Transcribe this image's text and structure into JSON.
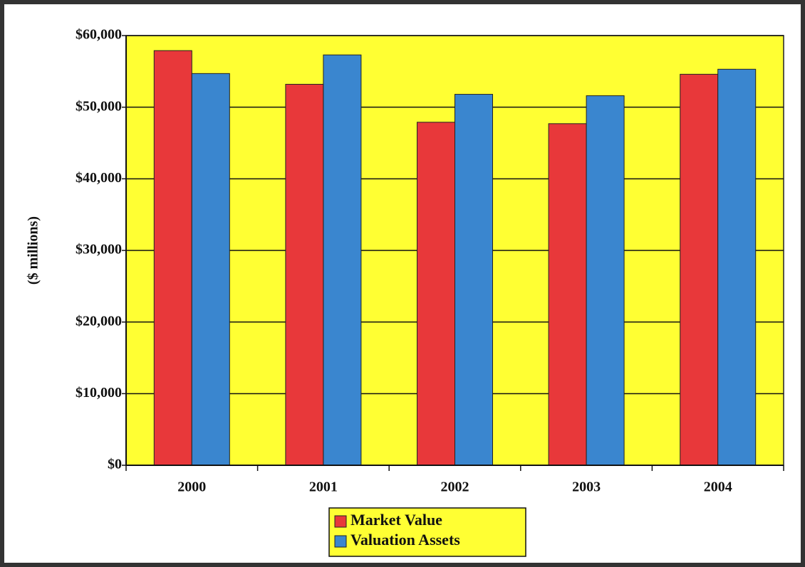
{
  "chart_data": {
    "type": "bar",
    "y_label": "($ millions)",
    "categories": [
      "2000",
      "2001",
      "2002",
      "2003",
      "2004"
    ],
    "series": [
      {
        "name": "Market Value",
        "color": "#e8383a",
        "values": [
          57900,
          53200,
          47900,
          47700,
          54600
        ]
      },
      {
        "name": "Valuation Assets",
        "color": "#3a86cf",
        "values": [
          54700,
          57300,
          51800,
          51600,
          55300
        ]
      }
    ],
    "ylim": [
      0,
      60000
    ],
    "yticks": [
      {
        "value": 0,
        "label": "$0"
      },
      {
        "value": 10000,
        "label": "$10,000"
      },
      {
        "value": 20000,
        "label": "$20,000"
      },
      {
        "value": 30000,
        "label": "$30,000"
      },
      {
        "value": 40000,
        "label": "$40,000"
      },
      {
        "value": 50000,
        "label": "$50,000"
      },
      {
        "value": 60000,
        "label": "$60,000"
      }
    ],
    "grid": true,
    "plot_background": "#ffff33",
    "legend": "bottom"
  }
}
